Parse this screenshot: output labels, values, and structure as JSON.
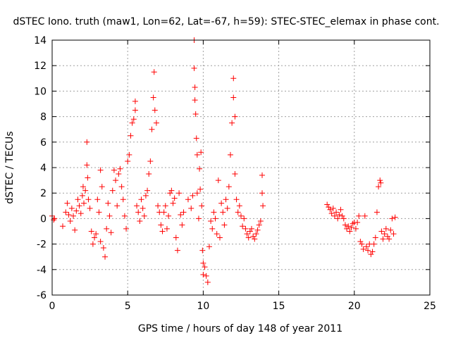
{
  "chart_data": {
    "type": "scatter",
    "title": "dSTEC Iono. truth (maw1, Lon=62, Lat=-67, h=59): STEC-STEC_elemax in phase cont.",
    "xlabel": "GPS time / hours of day 148 of year 2011",
    "ylabel": "dSTEC  / TECUs",
    "xlim": [
      0,
      25
    ],
    "ylim": [
      -6,
      14
    ],
    "xticks": [
      0,
      5,
      10,
      15,
      20,
      25
    ],
    "yticks": [
      -6,
      -4,
      -2,
      0,
      2,
      4,
      6,
      8,
      10,
      12,
      14
    ],
    "grid": true,
    "marker": "+",
    "marker_color": "#ff0000",
    "series": [
      {
        "points": [
          [
            0.0,
            0.2
          ],
          [
            0.1,
            -0.1
          ],
          [
            0.15,
            0.0
          ],
          [
            0.7,
            -0.6
          ],
          [
            0.9,
            0.5
          ],
          [
            1.0,
            1.2
          ],
          [
            1.1,
            0.3
          ],
          [
            1.2,
            -0.2
          ],
          [
            1.3,
            0.8
          ],
          [
            1.4,
            0.2
          ],
          [
            1.5,
            -0.9
          ],
          [
            1.6,
            0.6
          ],
          [
            1.7,
            1.5
          ],
          [
            1.8,
            1.0
          ],
          [
            1.9,
            0.4
          ],
          [
            2.0,
            1.8
          ],
          [
            2.05,
            2.5
          ],
          [
            2.1,
            1.2
          ],
          [
            2.2,
            2.2
          ],
          [
            2.3,
            6.0
          ],
          [
            2.3,
            4.2
          ],
          [
            2.35,
            3.2
          ],
          [
            2.4,
            1.5
          ],
          [
            2.5,
            0.8
          ],
          [
            2.6,
            -1.0
          ],
          [
            2.7,
            -2.0
          ],
          [
            2.8,
            -1.5
          ],
          [
            2.9,
            -1.2
          ],
          [
            3.0,
            1.5
          ],
          [
            3.1,
            0.5
          ],
          [
            3.2,
            3.8
          ],
          [
            3.2,
            -1.8
          ],
          [
            3.3,
            2.5
          ],
          [
            3.4,
            -2.3
          ],
          [
            3.5,
            -3.0
          ],
          [
            3.6,
            -0.8
          ],
          [
            3.7,
            1.2
          ],
          [
            3.8,
            0.2
          ],
          [
            3.9,
            -1.1
          ],
          [
            4.0,
            2.2
          ],
          [
            4.1,
            3.8
          ],
          [
            4.2,
            3.0
          ],
          [
            4.3,
            1.0
          ],
          [
            4.4,
            3.5
          ],
          [
            4.5,
            3.9
          ],
          [
            4.6,
            2.5
          ],
          [
            4.7,
            1.5
          ],
          [
            4.8,
            0.2
          ],
          [
            4.9,
            -0.8
          ],
          [
            5.0,
            4.5
          ],
          [
            5.1,
            5.0
          ],
          [
            5.2,
            6.5
          ],
          [
            5.3,
            7.5
          ],
          [
            5.4,
            7.8
          ],
          [
            5.5,
            8.5
          ],
          [
            5.5,
            9.2
          ],
          [
            5.6,
            1.0
          ],
          [
            5.7,
            0.5
          ],
          [
            5.8,
            -0.2
          ],
          [
            5.9,
            1.5
          ],
          [
            6.0,
            0.8
          ],
          [
            6.1,
            0.2
          ],
          [
            6.2,
            1.8
          ],
          [
            6.3,
            2.2
          ],
          [
            6.4,
            3.5
          ],
          [
            6.5,
            4.5
          ],
          [
            6.6,
            7.0
          ],
          [
            6.7,
            9.5
          ],
          [
            6.75,
            11.5
          ],
          [
            6.8,
            8.5
          ],
          [
            6.9,
            7.5
          ],
          [
            7.0,
            1.0
          ],
          [
            7.1,
            0.5
          ],
          [
            7.2,
            -0.5
          ],
          [
            7.3,
            -1.0
          ],
          [
            7.4,
            0.5
          ],
          [
            7.5,
            1.0
          ],
          [
            7.6,
            -0.8
          ],
          [
            7.7,
            0.2
          ],
          [
            7.8,
            2.0
          ],
          [
            7.9,
            2.2
          ],
          [
            8.0,
            1.2
          ],
          [
            8.1,
            1.6
          ],
          [
            8.2,
            -1.5
          ],
          [
            8.3,
            -2.5
          ],
          [
            8.4,
            2.0
          ],
          [
            8.5,
            0.3
          ],
          [
            8.6,
            -0.5
          ],
          [
            8.7,
            0.5
          ],
          [
            9.0,
            1.5
          ],
          [
            9.2,
            0.8
          ],
          [
            9.3,
            1.8
          ],
          [
            9.4,
            11.8
          ],
          [
            9.4,
            14.0
          ],
          [
            9.45,
            10.3
          ],
          [
            9.45,
            9.3
          ],
          [
            9.5,
            8.2
          ],
          [
            9.55,
            6.3
          ],
          [
            9.6,
            5.0
          ],
          [
            9.6,
            2.0
          ],
          [
            9.7,
            0.0
          ],
          [
            9.75,
            3.9
          ],
          [
            9.8,
            2.3
          ],
          [
            9.85,
            5.2
          ],
          [
            9.9,
            1.0
          ],
          [
            9.95,
            -2.5
          ],
          [
            10.0,
            -3.5
          ],
          [
            10.0,
            -4.4
          ],
          [
            10.1,
            -3.8
          ],
          [
            10.2,
            -4.5
          ],
          [
            10.3,
            -5.0
          ],
          [
            10.4,
            -2.2
          ],
          [
            10.5,
            -0.2
          ],
          [
            10.6,
            -0.8
          ],
          [
            10.7,
            0.5
          ],
          [
            10.8,
            0.0
          ],
          [
            10.9,
            -1.2
          ],
          [
            11.0,
            3.0
          ],
          [
            11.1,
            -1.5
          ],
          [
            11.2,
            1.2
          ],
          [
            11.3,
            0.5
          ],
          [
            11.4,
            -0.5
          ],
          [
            11.5,
            1.5
          ],
          [
            11.6,
            0.8
          ],
          [
            11.7,
            2.5
          ],
          [
            11.8,
            5.0
          ],
          [
            11.9,
            7.5
          ],
          [
            12.0,
            11.0
          ],
          [
            12.0,
            9.5
          ],
          [
            12.1,
            8.0
          ],
          [
            12.1,
            3.5
          ],
          [
            12.2,
            1.5
          ],
          [
            12.3,
            0.5
          ],
          [
            12.4,
            1.0
          ],
          [
            12.5,
            0.2
          ],
          [
            12.6,
            -0.6
          ],
          [
            12.7,
            0.0
          ],
          [
            12.8,
            -0.8
          ],
          [
            12.9,
            -1.2
          ],
          [
            13.0,
            -1.5
          ],
          [
            13.1,
            -1.0
          ],
          [
            13.2,
            -0.8
          ],
          [
            13.3,
            -1.4
          ],
          [
            13.4,
            -1.6
          ],
          [
            13.5,
            -1.2
          ],
          [
            13.6,
            -0.9
          ],
          [
            13.7,
            -0.5
          ],
          [
            13.8,
            -0.2
          ],
          [
            13.9,
            3.4
          ],
          [
            13.9,
            2.0
          ],
          [
            13.95,
            1.0
          ],
          [
            18.2,
            1.1
          ],
          [
            18.3,
            0.9
          ],
          [
            18.4,
            0.7
          ],
          [
            18.5,
            0.4
          ],
          [
            18.6,
            0.8
          ],
          [
            18.7,
            0.2
          ],
          [
            18.8,
            0.5
          ],
          [
            18.9,
            0.0
          ],
          [
            19.0,
            0.3
          ],
          [
            19.1,
            0.7
          ],
          [
            19.2,
            0.2
          ],
          [
            19.3,
            0.0
          ],
          [
            19.4,
            -0.5
          ],
          [
            19.5,
            -0.8
          ],
          [
            19.6,
            -0.6
          ],
          [
            19.7,
            -1.0
          ],
          [
            19.8,
            -0.7
          ],
          [
            19.9,
            -0.4
          ],
          [
            20.0,
            -0.3
          ],
          [
            20.1,
            -0.8
          ],
          [
            20.2,
            -0.3
          ],
          [
            20.3,
            0.2
          ],
          [
            20.4,
            -1.8
          ],
          [
            20.5,
            -2.0
          ],
          [
            20.6,
            -2.4
          ],
          [
            20.7,
            0.2
          ],
          [
            20.8,
            -2.2
          ],
          [
            20.9,
            -2.5
          ],
          [
            21.0,
            -2.0
          ],
          [
            21.1,
            -2.8
          ],
          [
            21.2,
            -2.6
          ],
          [
            21.3,
            -2.0
          ],
          [
            21.4,
            -1.5
          ],
          [
            21.5,
            0.5
          ],
          [
            21.6,
            2.5
          ],
          [
            21.7,
            3.0
          ],
          [
            21.75,
            2.8
          ],
          [
            21.8,
            -1.0
          ],
          [
            21.9,
            -1.6
          ],
          [
            22.0,
            -1.2
          ],
          [
            22.1,
            -0.8
          ],
          [
            22.2,
            -1.4
          ],
          [
            22.3,
            -1.6
          ],
          [
            22.4,
            -0.9
          ],
          [
            22.5,
            0.0
          ],
          [
            22.6,
            -1.2
          ],
          [
            22.7,
            0.1
          ]
        ]
      }
    ]
  }
}
